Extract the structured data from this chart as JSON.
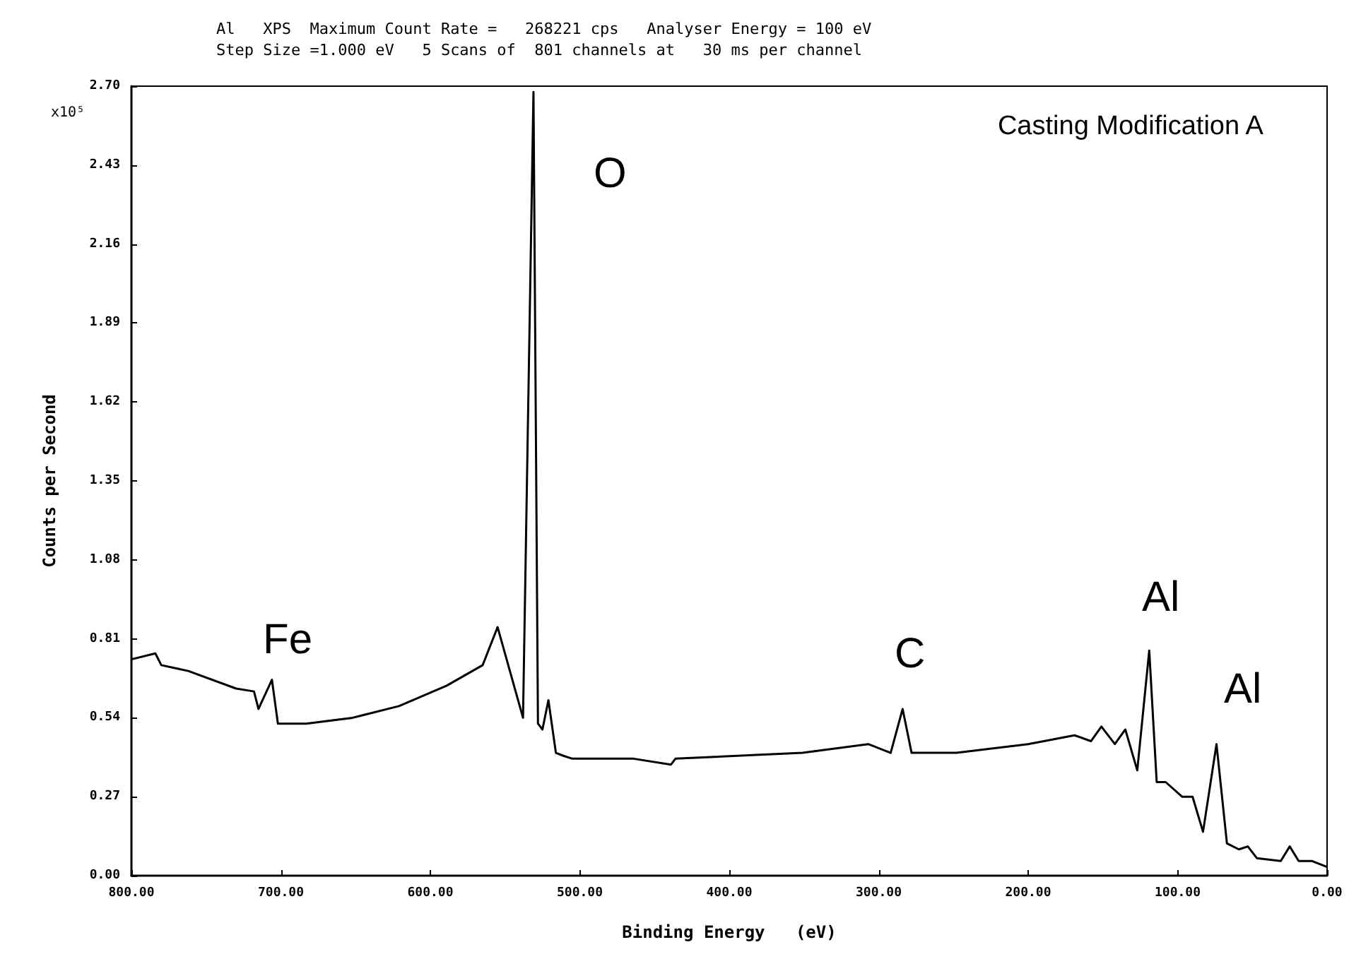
{
  "chart_data": {
    "type": "line",
    "title": "Al   XPS  Maximum Count Rate =   268221 cps   Analyser Energy = 100 eV",
    "subtitle": "Step Size =1.000 eV   5 Scans of  801 channels at   30 ms per channel",
    "xlabel": "Binding Energy   (eV)",
    "ylabel": "Counts per Second",
    "x": [
      800,
      784,
      780,
      762,
      730,
      718,
      715,
      706,
      702,
      683,
      652,
      621,
      589,
      565,
      555,
      538,
      531,
      528,
      525,
      521,
      516,
      511,
      505,
      464,
      439,
      436,
      351,
      307,
      292,
      284,
      278,
      248,
      200,
      169,
      158,
      151,
      142,
      135,
      127,
      119,
      114,
      108,
      97,
      90,
      83,
      74,
      67,
      59,
      53,
      47,
      31,
      25,
      19,
      10,
      0
    ],
    "series": [
      {
        "color": "#000000",
        "values": [
          0.74,
          0.76,
          0.72,
          0.7,
          0.64,
          0.63,
          0.57,
          0.67,
          0.52,
          0.52,
          0.54,
          0.58,
          0.65,
          0.72,
          0.85,
          0.54,
          2.68,
          0.52,
          0.5,
          0.6,
          0.42,
          0.41,
          0.4,
          0.4,
          0.38,
          0.4,
          0.42,
          0.45,
          0.42,
          0.57,
          0.42,
          0.42,
          0.45,
          0.48,
          0.46,
          0.51,
          0.45,
          0.5,
          0.36,
          0.77,
          0.32,
          0.32,
          0.27,
          0.27,
          0.15,
          0.45,
          0.11,
          0.09,
          0.1,
          0.06,
          0.05,
          0.1,
          0.05,
          0.05,
          0.03
        ]
      }
    ],
    "xlim": [
      800,
      0
    ],
    "xticks": [
      {
        "value": 800,
        "label": "800.00"
      },
      {
        "value": 700,
        "label": "700.00"
      },
      {
        "value": 600,
        "label": "600.00"
      },
      {
        "value": 500,
        "label": "500.00"
      },
      {
        "value": 400,
        "label": "400.00"
      },
      {
        "value": 300,
        "label": "300.00"
      },
      {
        "value": 200,
        "label": "200.00"
      },
      {
        "value": 100,
        "label": "100.00"
      },
      {
        "value": 0,
        "label": "0.00"
      }
    ],
    "ylim": [
      0,
      2.7
    ],
    "yticks": [
      {
        "value": 0,
        "label": "0.00"
      },
      0.27,
      0.54,
      0.81,
      1.08,
      1.35,
      1.62,
      1.89,
      2.16,
      2.43,
      {
        "value": 2.7,
        "label": "2.70"
      }
    ],
    "annotations": [
      "Fe",
      "O",
      "C",
      "Al",
      "Al",
      "Casting Modification A",
      "x10⁵"
    ],
    "grid": false,
    "marker": "none",
    "line_style": "solid"
  }
}
